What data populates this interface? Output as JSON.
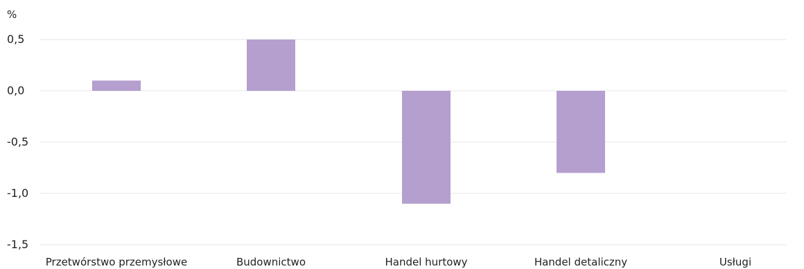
{
  "chart_data": {
    "type": "bar",
    "yunit": "%",
    "categories": [
      "Przetwórstwo przemysłowe",
      "Budownictwo",
      "Handel hurtowy",
      "Handel detaliczny",
      "Usługi"
    ],
    "values": [
      0.1,
      0.5,
      -1.1,
      -0.8,
      0.0
    ],
    "yticks": [
      0.5,
      0.0,
      -0.5,
      -1.0,
      -1.5
    ],
    "ytick_labels": [
      "0,5",
      "0,0",
      "-0,5",
      "-1,0",
      "-1,5"
    ],
    "ylim": [
      -1.5,
      0.5
    ],
    "grid": true,
    "bar_color": "#b49fcf",
    "grid_color": "#e6e6e6"
  }
}
